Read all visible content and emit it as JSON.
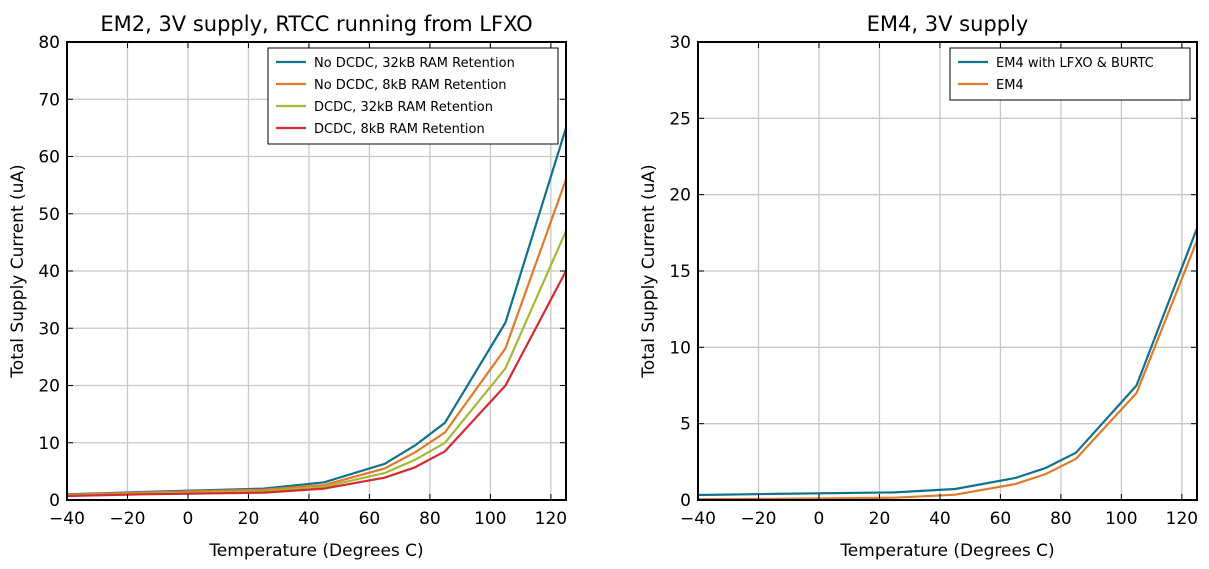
{
  "chart_data": [
    {
      "type": "line",
      "title": "EM2, 3V supply, RTCC running from LFXO",
      "xlabel": "Temperature (Degrees C)",
      "ylabel": "Total Supply Current (uA)",
      "xlim": [
        -40,
        125
      ],
      "ylim": [
        0,
        80
      ],
      "xticks": [
        -40,
        -20,
        0,
        20,
        40,
        60,
        80,
        100,
        120
      ],
      "yticks": [
        0,
        10,
        20,
        30,
        40,
        50,
        60,
        70,
        80
      ],
      "grid": true,
      "legend_position": "top-right",
      "series": [
        {
          "name": "No DCDC, 32kB RAM Retention",
          "color": "#10718e",
          "x": [
            -40,
            -15,
            25,
            45,
            65,
            75,
            85,
            105,
            125
          ],
          "y": [
            1.0,
            1.4,
            2.0,
            3.1,
            6.3,
            9.5,
            13.5,
            31.0,
            65.0
          ]
        },
        {
          "name": "No DCDC, 8kB RAM Retention",
          "color": "#e07b2a",
          "x": [
            -40,
            -15,
            25,
            45,
            65,
            75,
            85,
            105,
            125
          ],
          "y": [
            0.9,
            1.3,
            1.8,
            2.6,
            5.5,
            8.3,
            11.8,
            26.5,
            56.0
          ]
        },
        {
          "name": "DCDC, 32kB RAM Retention",
          "color": "#a7b838",
          "x": [
            -40,
            -15,
            25,
            45,
            65,
            75,
            85,
            105,
            125
          ],
          "y": [
            0.8,
            1.1,
            1.5,
            2.3,
            4.7,
            7.0,
            10.0,
            23.0,
            47.0
          ]
        },
        {
          "name": "DCDC, 8kB RAM Retention",
          "color": "#d62a33",
          "x": [
            -40,
            -15,
            25,
            45,
            65,
            75,
            85,
            105,
            125
          ],
          "y": [
            0.7,
            1.0,
            1.3,
            2.0,
            3.9,
            5.7,
            8.5,
            20.0,
            40.0
          ]
        }
      ]
    },
    {
      "type": "line",
      "title": "EM4, 3V supply",
      "xlabel": "Temperature (Degrees C)",
      "ylabel": "Total Supply Current (uA)",
      "xlim": [
        -40,
        125
      ],
      "ylim": [
        0,
        30
      ],
      "xticks": [
        -40,
        -20,
        0,
        20,
        40,
        60,
        80,
        100,
        120
      ],
      "yticks": [
        0,
        5,
        10,
        15,
        20,
        25,
        30
      ],
      "grid": true,
      "legend_position": "top-right",
      "series": [
        {
          "name": "EM4 with LFXO & BURTC",
          "color": "#10718e",
          "x": [
            -40,
            -15,
            25,
            45,
            65,
            75,
            85,
            105,
            125
          ],
          "y": [
            0.33,
            0.4,
            0.5,
            0.72,
            1.45,
            2.1,
            3.1,
            7.5,
            17.8
          ]
        },
        {
          "name": "EM4",
          "color": "#e07b2a",
          "x": [
            -40,
            -15,
            25,
            45,
            65,
            75,
            85,
            105,
            125
          ],
          "y": [
            0.05,
            0.08,
            0.15,
            0.35,
            1.05,
            1.7,
            2.7,
            7.0,
            17.0
          ]
        }
      ]
    }
  ]
}
